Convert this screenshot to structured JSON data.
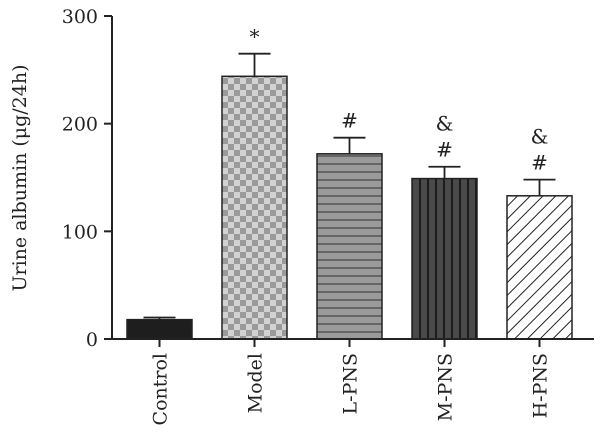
{
  "chart_data": {
    "type": "bar",
    "title": "",
    "xlabel": "",
    "ylabel": "Urine albumin (μg/24h)",
    "ylim": [
      0,
      300
    ],
    "yticks": [
      "0",
      "100",
      "200",
      "300"
    ],
    "ytick_values": [
      0,
      100,
      200,
      300
    ],
    "grid": false,
    "categories": [
      "Control",
      "Model",
      "L-PNS",
      "M-PNS",
      "H-PNS"
    ],
    "values": [
      18,
      244,
      172,
      149,
      133
    ],
    "errors": [
      2,
      21,
      15,
      11,
      15
    ],
    "annotations": [
      [],
      [
        "*"
      ],
      [
        "#"
      ],
      [
        "&",
        "#"
      ],
      [
        "&",
        "#"
      ]
    ],
    "fills": [
      {
        "pattern": "solid",
        "color": "#1e1e1e"
      },
      {
        "pattern": "checker",
        "color": "#a6a6a6"
      },
      {
        "pattern": "horizontal-lines",
        "color": "#8c8c8c"
      },
      {
        "pattern": "vertical-lines",
        "color": "#4a4a4a"
      },
      {
        "pattern": "diagonal-hatch",
        "color": "#ffffff"
      }
    ]
  }
}
